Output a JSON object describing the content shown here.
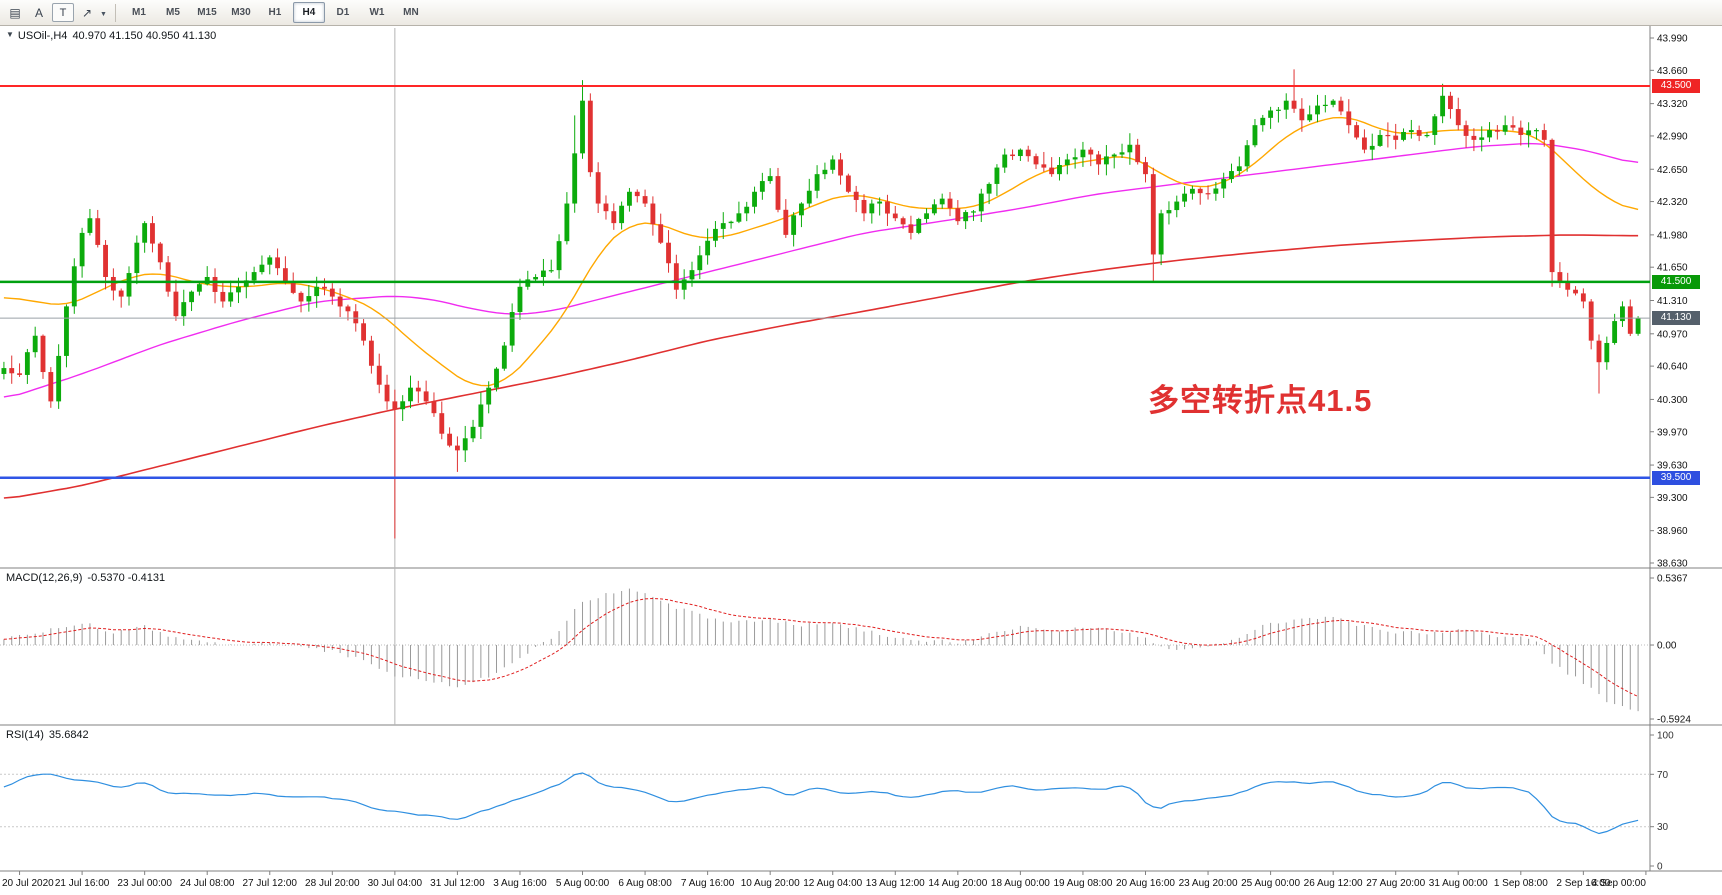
{
  "toolbar": {
    "tools": [
      {
        "name": "chart-grid-icon",
        "glyph": "▤"
      },
      {
        "name": "text-tool",
        "glyph": "A"
      },
      {
        "name": "text-label-tool",
        "glyph": "T"
      },
      {
        "name": "arrow-tool",
        "glyph": "↗"
      },
      {
        "name": "dropdown-caret",
        "glyph": "▼"
      }
    ],
    "timeframes": [
      "M1",
      "M5",
      "M15",
      "M30",
      "H1",
      "H4",
      "D1",
      "W1",
      "MN"
    ],
    "active_timeframe": "H4"
  },
  "main_chart": {
    "collapse_icon": "▼",
    "symbol_period": "USOil-,H4",
    "ohlc_text": "40.970 41.150 40.950 41.130",
    "annotation": {
      "text": "多空转折点41.5",
      "color": "#e03131"
    },
    "scale_ticks": [
      "43.990",
      "43.660",
      "43.320",
      "42.990",
      "42.650",
      "42.320",
      "41.980",
      "41.650",
      "41.310",
      "40.970",
      "40.640",
      "40.300",
      "39.970",
      "39.630",
      "39.300",
      "38.960",
      "38.630"
    ],
    "price_markers": [
      {
        "price": 43.5,
        "label": "43.500",
        "line_color": "#ff2626",
        "line_width": 2,
        "box_bg": "#ef2525"
      },
      {
        "price": 41.5,
        "label": "41.500",
        "line_color": "#00a010",
        "line_width": 2.5,
        "box_bg": "#089908"
      },
      {
        "price": 41.13,
        "label": "41.130",
        "line_color": "#9aa0a6",
        "line_width": 1,
        "box_bg": "#55606b"
      },
      {
        "price": 39.5,
        "label": "39.500",
        "line_color": "#2f55e6",
        "line_width": 2.5,
        "box_bg": "#2e4fe0"
      }
    ]
  },
  "macd": {
    "label": "MACD(12,26,9)",
    "values": "-0.5370 -0.4131",
    "scale": [
      "0.5367",
      "0.00",
      "-0.5924"
    ],
    "levels": [
      0
    ]
  },
  "rsi": {
    "label": "RSI(14)",
    "values": "35.6842",
    "scale": [
      "100",
      "70",
      "30",
      "0"
    ],
    "levels": [
      70,
      30
    ]
  },
  "time_axis": {
    "labels": [
      "20 Jul 2020",
      "21 Jul 16:00",
      "23 Jul 00:00",
      "24 Jul 08:00",
      "27 Jul 12:00",
      "28 Jul 20:00",
      "30 Jul 04:00",
      "31 Jul 12:00",
      "3 Aug 16:00",
      "5 Aug 00:00",
      "6 Aug 08:00",
      "7 Aug 16:00",
      "10 Aug 20:00",
      "12 Aug 04:00",
      "13 Aug 12:00",
      "14 Aug 20:00",
      "18 Aug 00:00",
      "19 Aug 08:00",
      "20 Aug 16:00",
      "23 Aug 20:00",
      "25 Aug 00:00",
      "26 Aug 12:00",
      "27 Aug 20:00",
      "31 Aug 00:00",
      "1 Sep 08:00",
      "2 Sep 16:00",
      "4 Sep 00:00"
    ]
  },
  "colors": {
    "up": "#0cab0c",
    "down": "#e03232",
    "ma_fast": "#ffa800",
    "ma_mid": "#f02cf0",
    "ma_slow": "#e03030",
    "macd_hist": "#9a9a9a",
    "macd_signal": "#e02020",
    "rsi": "#2f8fe0",
    "axis": "#808080",
    "vline": "#b4b4b4"
  },
  "chart_data": {
    "type": "candlestick",
    "symbol": "USOil",
    "period": "H4",
    "candle_count": 210,
    "seed": 20200904,
    "vline_index": 50,
    "time_label_start_index": 2,
    "time_label_step": 8,
    "last_candle": {
      "open": 40.97,
      "high": 41.15,
      "low": 40.95,
      "close": 41.13
    },
    "close_keypoints": [
      [
        0,
        40.62
      ],
      [
        2,
        40.55
      ],
      [
        4,
        40.95
      ],
      [
        6,
        40.28
      ],
      [
        8,
        41.25
      ],
      [
        10,
        42.0
      ],
      [
        11,
        42.15
      ],
      [
        13,
        41.55
      ],
      [
        15,
        41.35
      ],
      [
        17,
        41.9
      ],
      [
        18,
        42.1
      ],
      [
        20,
        41.7
      ],
      [
        22,
        41.15
      ],
      [
        24,
        41.4
      ],
      [
        26,
        41.55
      ],
      [
        28,
        41.3
      ],
      [
        30,
        41.45
      ],
      [
        32,
        41.6
      ],
      [
        34,
        41.75
      ],
      [
        36,
        41.5
      ],
      [
        38,
        41.3
      ],
      [
        40,
        41.45
      ],
      [
        42,
        41.35
      ],
      [
        44,
        41.2
      ],
      [
        46,
        40.9
      ],
      [
        48,
        40.45
      ],
      [
        50,
        40.2
      ],
      [
        52,
        40.42
      ],
      [
        54,
        40.28
      ],
      [
        56,
        39.95
      ],
      [
        58,
        39.78
      ],
      [
        60,
        40.02
      ],
      [
        62,
        40.42
      ],
      [
        64,
        40.85
      ],
      [
        66,
        41.45
      ],
      [
        68,
        41.55
      ],
      [
        70,
        41.62
      ],
      [
        72,
        42.3
      ],
      [
        74,
        43.35
      ],
      [
        75,
        42.62
      ],
      [
        76,
        42.3
      ],
      [
        78,
        42.1
      ],
      [
        80,
        42.42
      ],
      [
        82,
        42.3
      ],
      [
        84,
        41.9
      ],
      [
        86,
        41.42
      ],
      [
        88,
        41.62
      ],
      [
        90,
        41.92
      ],
      [
        92,
        42.1
      ],
      [
        94,
        42.2
      ],
      [
        96,
        42.42
      ],
      [
        98,
        42.58
      ],
      [
        100,
        41.98
      ],
      [
        102,
        42.3
      ],
      [
        104,
        42.6
      ],
      [
        106,
        42.75
      ],
      [
        108,
        42.42
      ],
      [
        110,
        42.2
      ],
      [
        112,
        42.32
      ],
      [
        114,
        42.15
      ],
      [
        116,
        42.0
      ],
      [
        118,
        42.2
      ],
      [
        120,
        42.35
      ],
      [
        122,
        42.12
      ],
      [
        124,
        42.22
      ],
      [
        126,
        42.5
      ],
      [
        128,
        42.8
      ],
      [
        130,
        42.85
      ],
      [
        132,
        42.7
      ],
      [
        134,
        42.6
      ],
      [
        136,
        42.75
      ],
      [
        138,
        42.85
      ],
      [
        140,
        42.7
      ],
      [
        142,
        42.8
      ],
      [
        144,
        42.9
      ],
      [
        146,
        42.6
      ],
      [
        147,
        41.78
      ],
      [
        148,
        42.2
      ],
      [
        150,
        42.32
      ],
      [
        152,
        42.45
      ],
      [
        154,
        42.4
      ],
      [
        156,
        42.55
      ],
      [
        158,
        42.68
      ],
      [
        160,
        43.1
      ],
      [
        162,
        43.25
      ],
      [
        164,
        43.35
      ],
      [
        166,
        43.15
      ],
      [
        168,
        43.3
      ],
      [
        170,
        43.35
      ],
      [
        172,
        43.1
      ],
      [
        174,
        42.85
      ],
      [
        176,
        43.0
      ],
      [
        178,
        42.95
      ],
      [
        180,
        43.05
      ],
      [
        182,
        43.0
      ],
      [
        184,
        43.4
      ],
      [
        186,
        43.1
      ],
      [
        188,
        42.95
      ],
      [
        190,
        43.05
      ],
      [
        192,
        43.1
      ],
      [
        194,
        43.0
      ],
      [
        196,
        43.05
      ],
      [
        197,
        42.95
      ],
      [
        198,
        41.6
      ],
      [
        200,
        41.42
      ],
      [
        202,
        41.3
      ],
      [
        203,
        40.9
      ],
      [
        204,
        40.68
      ],
      [
        206,
        41.1
      ],
      [
        207,
        41.25
      ],
      [
        208,
        40.97
      ],
      [
        209,
        41.13
      ]
    ],
    "wick_overrides": {
      "50": {
        "low": 38.88
      },
      "58": {
        "low": 39.56
      },
      "73": {
        "high": 43.2
      },
      "74": {
        "high": 43.56
      },
      "147": {
        "low": 41.5
      },
      "165": {
        "high": 43.67
      },
      "198": {
        "low": 41.45
      },
      "204": {
        "low": 40.36
      },
      "209": {
        "high": 41.15,
        "low": 40.95
      }
    },
    "ma_fast_keypoints": [
      [
        0,
        41.35
      ],
      [
        4,
        41.3
      ],
      [
        8,
        41.25
      ],
      [
        12,
        41.4
      ],
      [
        16,
        41.55
      ],
      [
        20,
        41.6
      ],
      [
        24,
        41.5
      ],
      [
        28,
        41.45
      ],
      [
        32,
        41.45
      ],
      [
        36,
        41.5
      ],
      [
        40,
        41.45
      ],
      [
        44,
        41.35
      ],
      [
        48,
        41.2
      ],
      [
        52,
        40.9
      ],
      [
        56,
        40.65
      ],
      [
        60,
        40.42
      ],
      [
        64,
        40.46
      ],
      [
        68,
        40.8
      ],
      [
        72,
        41.2
      ],
      [
        76,
        41.8
      ],
      [
        80,
        42.1
      ],
      [
        84,
        42.1
      ],
      [
        88,
        41.95
      ],
      [
        92,
        41.95
      ],
      [
        96,
        42.05
      ],
      [
        100,
        42.15
      ],
      [
        104,
        42.3
      ],
      [
        108,
        42.4
      ],
      [
        112,
        42.35
      ],
      [
        116,
        42.25
      ],
      [
        120,
        42.25
      ],
      [
        124,
        42.25
      ],
      [
        128,
        42.4
      ],
      [
        132,
        42.6
      ],
      [
        136,
        42.7
      ],
      [
        140,
        42.75
      ],
      [
        144,
        42.8
      ],
      [
        148,
        42.6
      ],
      [
        152,
        42.45
      ],
      [
        156,
        42.5
      ],
      [
        160,
        42.7
      ],
      [
        164,
        43.0
      ],
      [
        168,
        43.15
      ],
      [
        172,
        43.2
      ],
      [
        176,
        43.05
      ],
      [
        180,
        43.0
      ],
      [
        184,
        43.05
      ],
      [
        188,
        43.05
      ],
      [
        192,
        43.05
      ],
      [
        196,
        43.0
      ],
      [
        200,
        42.7
      ],
      [
        204,
        42.4
      ],
      [
        209,
        42.2
      ]
    ],
    "ma_mid_keypoints": [
      [
        0,
        40.3
      ],
      [
        10,
        40.56
      ],
      [
        20,
        40.86
      ],
      [
        30,
        41.1
      ],
      [
        40,
        41.3
      ],
      [
        50,
        41.36
      ],
      [
        55,
        41.32
      ],
      [
        60,
        41.22
      ],
      [
        65,
        41.16
      ],
      [
        70,
        41.2
      ],
      [
        75,
        41.3
      ],
      [
        80,
        41.4
      ],
      [
        90,
        41.6
      ],
      [
        100,
        41.8
      ],
      [
        110,
        42.0
      ],
      [
        120,
        42.12
      ],
      [
        130,
        42.25
      ],
      [
        140,
        42.4
      ],
      [
        150,
        42.5
      ],
      [
        160,
        42.6
      ],
      [
        170,
        42.7
      ],
      [
        180,
        42.8
      ],
      [
        188,
        42.88
      ],
      [
        196,
        42.92
      ],
      [
        202,
        42.85
      ],
      [
        209,
        42.7
      ]
    ],
    "ma_slow_keypoints": [
      [
        0,
        39.28
      ],
      [
        10,
        39.42
      ],
      [
        25,
        39.72
      ],
      [
        40,
        40.02
      ],
      [
        50,
        40.2
      ],
      [
        60,
        40.36
      ],
      [
        70,
        40.52
      ],
      [
        80,
        40.7
      ],
      [
        90,
        40.9
      ],
      [
        100,
        41.06
      ],
      [
        110,
        41.2
      ],
      [
        120,
        41.35
      ],
      [
        130,
        41.5
      ],
      [
        140,
        41.62
      ],
      [
        150,
        41.72
      ],
      [
        160,
        41.8
      ],
      [
        170,
        41.87
      ],
      [
        180,
        41.92
      ],
      [
        190,
        41.96
      ],
      [
        200,
        41.98
      ],
      [
        209,
        41.97
      ]
    ],
    "macd_keypoints": [
      [
        0,
        0.05
      ],
      [
        6,
        0.12
      ],
      [
        10,
        0.18
      ],
      [
        14,
        0.1
      ],
      [
        18,
        0.15
      ],
      [
        22,
        0.05
      ],
      [
        26,
        0.02
      ],
      [
        30,
        0.0
      ],
      [
        34,
        0.03
      ],
      [
        38,
        -0.02
      ],
      [
        42,
        -0.05
      ],
      [
        46,
        -0.12
      ],
      [
        50,
        -0.25
      ],
      [
        54,
        -0.28
      ],
      [
        58,
        -0.33
      ],
      [
        62,
        -0.25
      ],
      [
        66,
        -0.1
      ],
      [
        70,
        0.05
      ],
      [
        74,
        0.35
      ],
      [
        78,
        0.42
      ],
      [
        80,
        0.45
      ],
      [
        82,
        0.43
      ],
      [
        86,
        0.3
      ],
      [
        90,
        0.22
      ],
      [
        94,
        0.18
      ],
      [
        98,
        0.2
      ],
      [
        102,
        0.16
      ],
      [
        106,
        0.18
      ],
      [
        110,
        0.12
      ],
      [
        114,
        0.06
      ],
      [
        118,
        0.04
      ],
      [
        122,
        0.02
      ],
      [
        126,
        0.08
      ],
      [
        130,
        0.14
      ],
      [
        134,
        0.12
      ],
      [
        138,
        0.13
      ],
      [
        142,
        0.12
      ],
      [
        146,
        0.05
      ],
      [
        150,
        -0.05
      ],
      [
        154,
        -0.02
      ],
      [
        158,
        0.05
      ],
      [
        162,
        0.18
      ],
      [
        166,
        0.2
      ],
      [
        170,
        0.22
      ],
      [
        174,
        0.15
      ],
      [
        178,
        0.1
      ],
      [
        182,
        0.1
      ],
      [
        186,
        0.12
      ],
      [
        190,
        0.08
      ],
      [
        194,
        0.06
      ],
      [
        196,
        0.02
      ],
      [
        198,
        -0.15
      ],
      [
        202,
        -0.3
      ],
      [
        205,
        -0.45
      ],
      [
        209,
        -0.54
      ]
    ],
    "rsi_keypoints": [
      [
        0,
        60
      ],
      [
        3,
        68
      ],
      [
        6,
        72
      ],
      [
        9,
        65
      ],
      [
        12,
        63
      ],
      [
        15,
        60
      ],
      [
        18,
        65
      ],
      [
        21,
        55
      ],
      [
        24,
        57
      ],
      [
        28,
        53
      ],
      [
        32,
        56
      ],
      [
        36,
        52
      ],
      [
        40,
        54
      ],
      [
        44,
        50
      ],
      [
        48,
        42
      ],
      [
        52,
        40
      ],
      [
        56,
        38
      ],
      [
        58,
        35
      ],
      [
        60,
        40
      ],
      [
        64,
        48
      ],
      [
        68,
        55
      ],
      [
        72,
        65
      ],
      [
        74,
        75
      ],
      [
        76,
        62
      ],
      [
        80,
        60
      ],
      [
        84,
        52
      ],
      [
        86,
        48
      ],
      [
        90,
        55
      ],
      [
        94,
        58
      ],
      [
        98,
        62
      ],
      [
        100,
        52
      ],
      [
        104,
        60
      ],
      [
        108,
        55
      ],
      [
        112,
        57
      ],
      [
        116,
        52
      ],
      [
        120,
        58
      ],
      [
        124,
        55
      ],
      [
        128,
        62
      ],
      [
        132,
        58
      ],
      [
        136,
        60
      ],
      [
        140,
        58
      ],
      [
        144,
        62
      ],
      [
        147,
        42
      ],
      [
        150,
        50
      ],
      [
        154,
        52
      ],
      [
        158,
        56
      ],
      [
        162,
        65
      ],
      [
        166,
        63
      ],
      [
        170,
        65
      ],
      [
        174,
        55
      ],
      [
        178,
        52
      ],
      [
        182,
        56
      ],
      [
        184,
        65
      ],
      [
        188,
        58
      ],
      [
        192,
        60
      ],
      [
        196,
        55
      ],
      [
        198,
        35
      ],
      [
        202,
        32
      ],
      [
        204,
        22
      ],
      [
        206,
        30
      ],
      [
        208,
        34
      ],
      [
        209,
        35.7
      ]
    ]
  }
}
